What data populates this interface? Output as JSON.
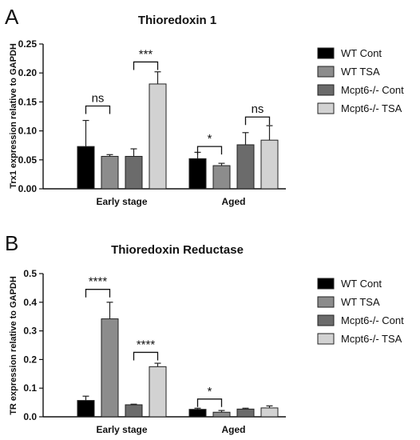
{
  "panels": [
    {
      "letter": "A",
      "chart_data": {
        "type": "bar",
        "title": "Thioredoxin 1",
        "ylabel": "Trx1 expression relative to GAPDH",
        "xlabel": "",
        "categories": [
          "Early stage",
          "Aged"
        ],
        "ylim": [
          0,
          0.25
        ],
        "yticks": [
          0.0,
          0.05,
          0.1,
          0.15,
          0.2,
          0.25
        ],
        "ytick_labels": [
          "0.00",
          "0.05",
          "0.10",
          "0.15",
          "0.20",
          "0.25"
        ],
        "series": [
          {
            "name": "WT Cont",
            "color": "#000000",
            "values": [
              0.073,
              0.052
            ],
            "errors": [
              0.045,
              0.011
            ]
          },
          {
            "name": "WT TSA",
            "color": "#8c8c8c",
            "values": [
              0.056,
              0.04
            ],
            "errors": [
              0.003,
              0.004
            ]
          },
          {
            "name": "Mcpt6-/- Cont",
            "color": "#6b6b6b",
            "values": [
              0.056,
              0.076
            ],
            "errors": [
              0.013,
              0.021
            ]
          },
          {
            "name": "Mcpt6-/- TSA",
            "color": "#d2d2d2",
            "values": [
              0.181,
              0.084
            ],
            "errors": [
              0.021,
              0.025
            ]
          }
        ],
        "significance": [
          {
            "label": "ns",
            "category": 0,
            "from_series": 0,
            "to_series": 1,
            "level": 0.143
          },
          {
            "label": "***",
            "category": 0,
            "from_series": 2,
            "to_series": 3,
            "level": 0.219
          },
          {
            "label": "*",
            "category": 1,
            "from_series": 0,
            "to_series": 1,
            "level": 0.073
          },
          {
            "label": "ns",
            "category": 1,
            "from_series": 2,
            "to_series": 3,
            "level": 0.124
          }
        ],
        "legend_position": "right"
      }
    },
    {
      "letter": "B",
      "chart_data": {
        "type": "bar",
        "title": "Thioredoxin Reductase",
        "ylabel": "TR expression relative to GAPDH",
        "xlabel": "",
        "categories": [
          "Early stage",
          "Aged"
        ],
        "ylim": [
          0,
          0.5
        ],
        "yticks": [
          0.0,
          0.1,
          0.2,
          0.3,
          0.4,
          0.5
        ],
        "ytick_labels": [
          "0.0",
          "0.1",
          "0.2",
          "0.3",
          "0.4",
          "0.5"
        ],
        "series": [
          {
            "name": "WT Cont",
            "color": "#000000",
            "values": [
              0.057,
              0.026
            ],
            "errors": [
              0.015,
              0.004
            ]
          },
          {
            "name": "WT TSA",
            "color": "#8c8c8c",
            "values": [
              0.342,
              0.016
            ],
            "errors": [
              0.058,
              0.006
            ]
          },
          {
            "name": "Mcpt6-/- Cont",
            "color": "#6b6b6b",
            "values": [
              0.042,
              0.027
            ],
            "errors": [
              0.002,
              0.003
            ]
          },
          {
            "name": "Mcpt6-/- TSA",
            "color": "#d2d2d2",
            "values": [
              0.175,
              0.031
            ],
            "errors": [
              0.012,
              0.007
            ]
          }
        ],
        "significance": [
          {
            "label": "****",
            "category": 0,
            "from_series": 0,
            "to_series": 1,
            "level": 0.445
          },
          {
            "label": "****",
            "category": 0,
            "from_series": 2,
            "to_series": 3,
            "level": 0.225
          },
          {
            "label": "*",
            "category": 1,
            "from_series": 0,
            "to_series": 1,
            "level": 0.062
          }
        ],
        "legend_position": "right"
      }
    }
  ]
}
